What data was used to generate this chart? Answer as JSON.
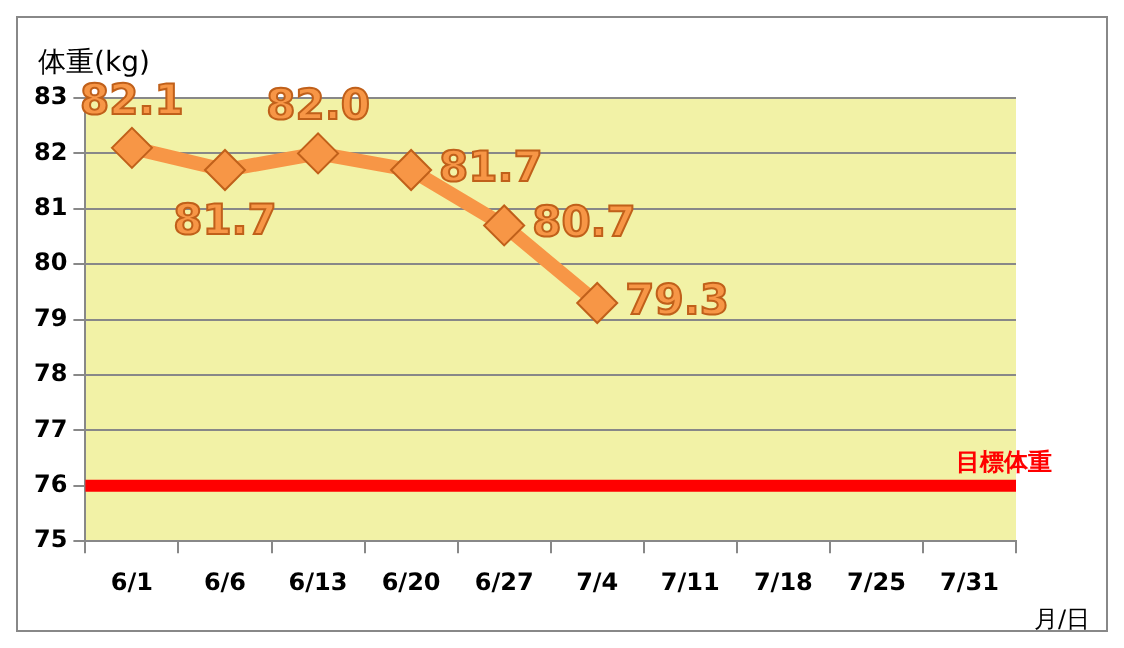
{
  "chart_data": {
    "type": "line",
    "ylabel": "体重(kg)",
    "xlabel": "月/日",
    "categories": [
      "6/1",
      "6/6",
      "6/13",
      "6/20",
      "6/27",
      "7/4",
      "7/11",
      "7/18",
      "7/25",
      "7/31"
    ],
    "series": [
      {
        "color": "#f79646",
        "values": [
          82.1,
          81.7,
          82.0,
          81.7,
          80.7,
          79.3,
          null,
          null,
          null,
          null
        ],
        "value_labels": [
          "82.1",
          "81.7",
          "82.0",
          "81.7",
          "80.7",
          "79.3",
          null,
          null,
          null,
          null
        ]
      }
    ],
    "ylim": [
      75,
      83
    ],
    "yticks": [
      75,
      76,
      77,
      78,
      79,
      80,
      81,
      82,
      83
    ],
    "grid": "y",
    "marker": "diamond",
    "line_style": "solid",
    "legend": false,
    "ref_lines": [
      {
        "axis": "y",
        "value": 76,
        "label": "目標体重",
        "color": "#ff0000"
      }
    ]
  }
}
